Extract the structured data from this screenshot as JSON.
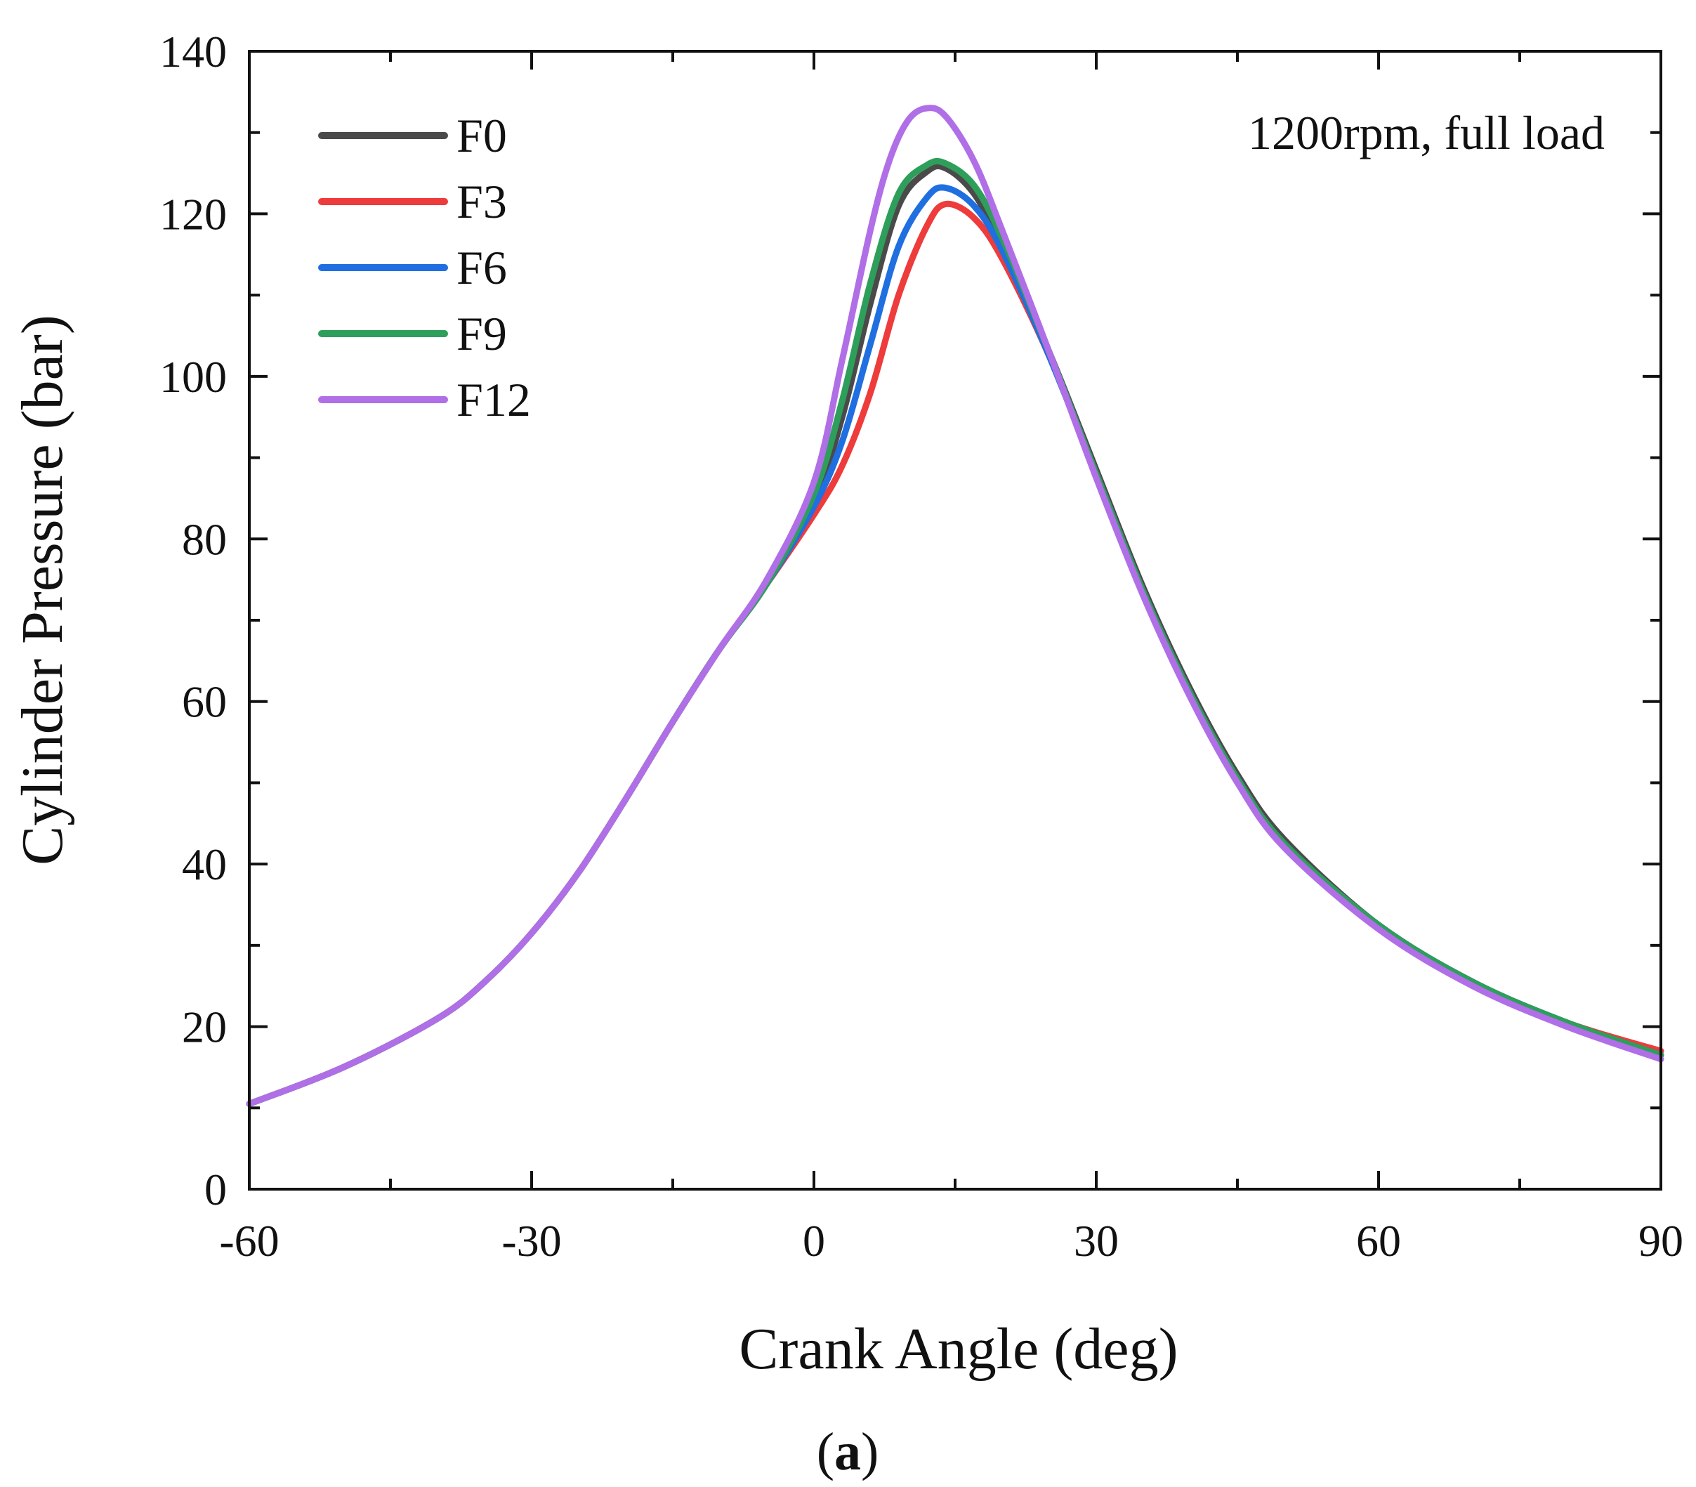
{
  "chart_data": {
    "type": "line",
    "title": "",
    "xlabel": "Crank Angle (deg)",
    "ylabel": "Cylinder Pressure (bar)",
    "xlim": [
      -60,
      90
    ],
    "ylim": [
      0,
      140
    ],
    "xticks": [
      -60,
      -30,
      0,
      30,
      60,
      90
    ],
    "yticks": [
      0,
      20,
      40,
      60,
      80,
      100,
      120,
      140
    ],
    "grid": false,
    "legend_position": "top-left",
    "annotation": "1200rpm, full load",
    "panel_label": {
      "open": "(",
      "letter": "a",
      "close": ")"
    },
    "series": [
      {
        "name": "F0",
        "color": "#4a4a4a",
        "x": [
          -60,
          -50,
          -40,
          -35,
          -30,
          -25,
          -20,
          -15,
          -10,
          -5,
          0,
          3,
          6,
          9,
          12,
          14,
          17,
          20,
          25,
          30,
          35,
          40,
          45,
          50,
          60,
          70,
          80,
          90
        ],
        "y": [
          10.5,
          15,
          21,
          25.5,
          31.5,
          39,
          48,
          57.5,
          66.5,
          74.5,
          84.5,
          95,
          109,
          121,
          125.2,
          125.6,
          122.5,
          116,
          103,
          88.5,
          74,
          61.5,
          51,
          43,
          32.5,
          25.5,
          20.5,
          16.5
        ]
      },
      {
        "name": "F3",
        "color": "#ee3b3b",
        "x": [
          -60,
          -50,
          -40,
          -35,
          -30,
          -25,
          -20,
          -15,
          -10,
          -5,
          0,
          3,
          6,
          9,
          12,
          14,
          17,
          20,
          25,
          30,
          35,
          40,
          45,
          50,
          60,
          70,
          80,
          90
        ],
        "y": [
          10.5,
          15,
          21,
          25.5,
          31.5,
          39,
          48,
          57.5,
          66.5,
          74.5,
          83,
          89,
          98,
          110,
          118.5,
          121.2,
          119.5,
          114.5,
          102.5,
          88,
          73.5,
          61,
          50.5,
          42.5,
          32.5,
          25.5,
          20.5,
          17
        ]
      },
      {
        "name": "F6",
        "color": "#1f6fe0",
        "x": [
          -60,
          -50,
          -40,
          -35,
          -30,
          -25,
          -20,
          -15,
          -10,
          -5,
          0,
          3,
          6,
          9,
          12,
          14,
          17,
          20,
          25,
          30,
          35,
          40,
          45,
          50,
          60,
          70,
          80,
          90
        ],
        "y": [
          10.5,
          15,
          21,
          25.5,
          31.5,
          39,
          48,
          57.5,
          66.5,
          74.5,
          84,
          92,
          104,
          116,
          122,
          123.2,
          121,
          115.5,
          102.5,
          88,
          73.5,
          61,
          50.5,
          42.5,
          32.5,
          25.5,
          20.5,
          16.5
        ]
      },
      {
        "name": "F9",
        "color": "#2e9e5b",
        "x": [
          -60,
          -50,
          -40,
          -35,
          -30,
          -25,
          -20,
          -15,
          -10,
          -5,
          0,
          3,
          6,
          9,
          12,
          14,
          17,
          20,
          25,
          30,
          35,
          40,
          45,
          50,
          60,
          70,
          80,
          90
        ],
        "y": [
          10.5,
          15,
          21,
          25.5,
          31.5,
          39,
          48,
          57.5,
          66.5,
          74.5,
          85.5,
          97,
          111.5,
          122.5,
          126,
          126.2,
          123.5,
          117,
          103,
          88,
          73.5,
          61,
          50.5,
          42.5,
          32.5,
          25.5,
          20.5,
          16.5
        ]
      },
      {
        "name": "F12",
        "color": "#b06fe6",
        "x": [
          -60,
          -50,
          -40,
          -35,
          -30,
          -25,
          -20,
          -15,
          -10,
          -5,
          0,
          3,
          6,
          8,
          10,
          12,
          14,
          17,
          20,
          25,
          30,
          35,
          40,
          45,
          50,
          60,
          70,
          80,
          90
        ],
        "y": [
          10.5,
          15,
          21,
          25.5,
          31.5,
          39,
          48,
          57.5,
          66.5,
          75,
          87,
          102,
          118,
          126.5,
          131.5,
          133,
          132,
          126.5,
          118,
          103,
          87.5,
          73,
          60.5,
          50,
          42,
          32,
          25,
          20,
          16
        ]
      }
    ]
  }
}
